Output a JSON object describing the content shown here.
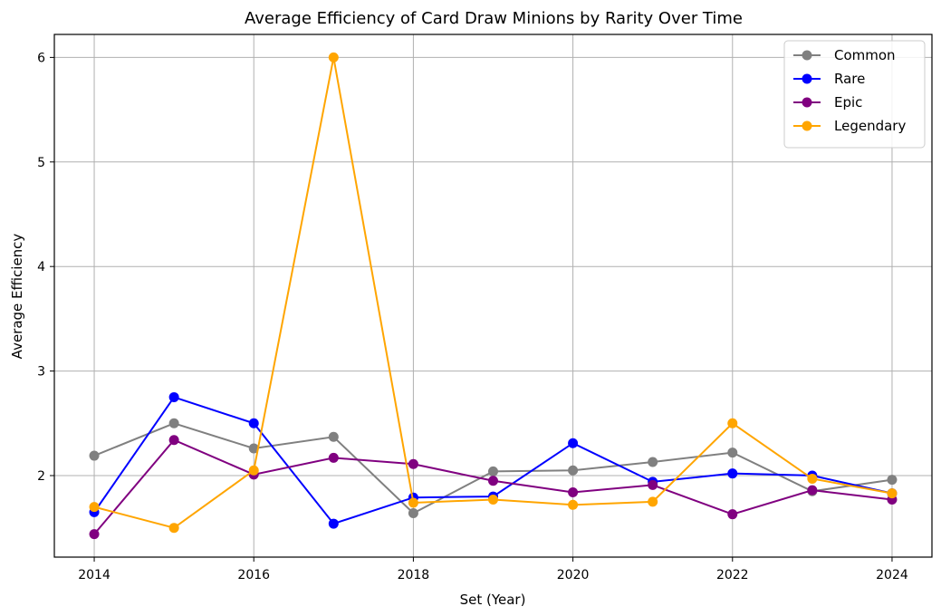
{
  "chart_data": {
    "type": "line",
    "title": "Average Efficiency of Card Draw Minions by Rarity Over Time",
    "xlabel": "Set (Year)",
    "ylabel": "Average Efficiency",
    "x": [
      2014,
      2015,
      2016,
      2017,
      2018,
      2019,
      2020,
      2021,
      2022,
      2023,
      2024
    ],
    "xlim": [
      2013.5,
      2024.5
    ],
    "ylim": [
      1.22,
      6.22
    ],
    "xticks": [
      "2014",
      "2016",
      "2018",
      "2020",
      "2022",
      "2024"
    ],
    "yticks": [
      "2",
      "3",
      "4",
      "5",
      "6"
    ],
    "grid": true,
    "legend_position": "top-right",
    "series": [
      {
        "name": "Common",
        "color": "#808080",
        "values": [
          2.19,
          2.5,
          2.26,
          2.37,
          1.64,
          2.04,
          2.05,
          2.13,
          2.22,
          1.85,
          1.96
        ]
      },
      {
        "name": "Rare",
        "color": "#0000ff",
        "values": [
          1.65,
          2.75,
          2.5,
          1.54,
          1.79,
          1.8,
          2.31,
          1.94,
          2.02,
          2.0,
          1.83
        ]
      },
      {
        "name": "Epic",
        "color": "#800080",
        "values": [
          1.44,
          2.34,
          2.01,
          2.17,
          2.11,
          1.95,
          1.84,
          1.91,
          1.63,
          1.86,
          1.77
        ]
      },
      {
        "name": "Legendary",
        "color": "#ffa500",
        "values": [
          1.7,
          1.5,
          2.05,
          6.0,
          1.74,
          1.77,
          1.72,
          1.75,
          2.5,
          1.97,
          1.83
        ]
      }
    ]
  }
}
